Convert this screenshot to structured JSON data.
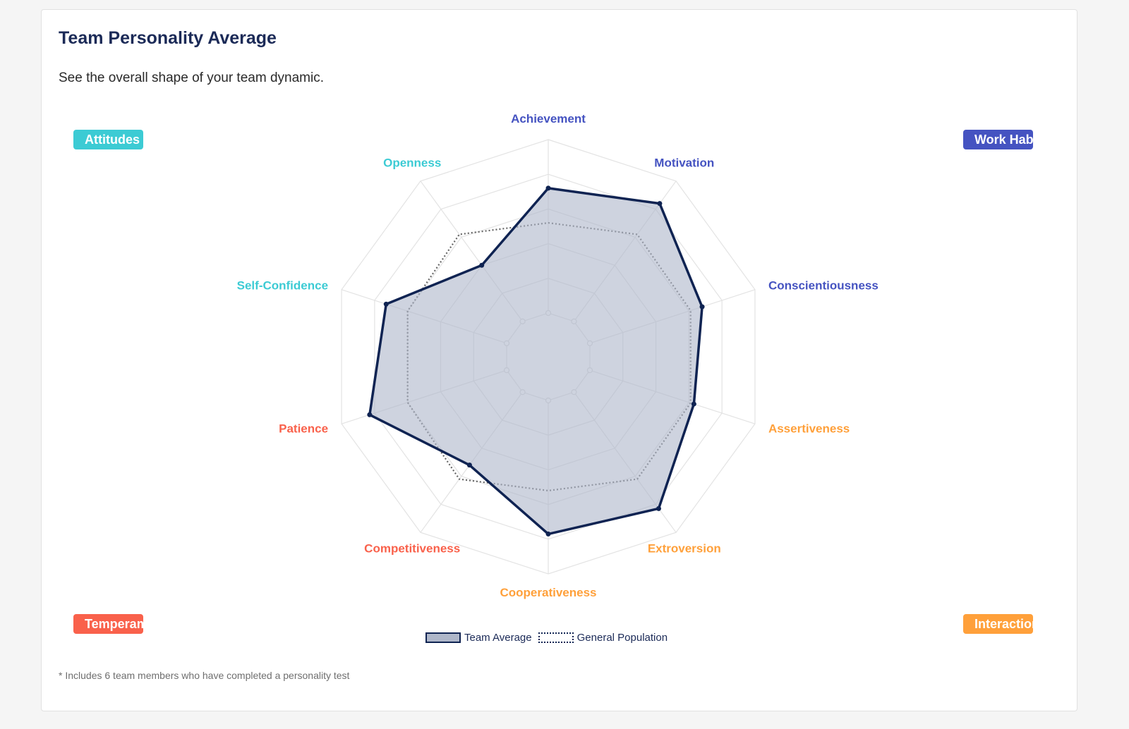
{
  "header": {
    "title": "Team Personality Average",
    "subtitle": "See the overall shape of your team dynamic."
  },
  "badges": {
    "attitudes": {
      "label": "Attitudes",
      "color": "#3ccbd4"
    },
    "work_habits": {
      "label": "Work Habits",
      "color": "#4553c1"
    },
    "temperament": {
      "label": "Temperament",
      "color": "#f9614b"
    },
    "interaction_style": {
      "label": "Interaction Style",
      "color": "#ffa03a"
    }
  },
  "legend": {
    "team_label": "Team Average",
    "population_label": "General Population"
  },
  "footnote": "* Includes 6 team members who have completed a personality test",
  "chart_data": {
    "type": "radar",
    "title": "",
    "rmax": 100,
    "rings": 5,
    "grid": true,
    "axes": [
      {
        "label": "Achievement",
        "color": "#4553c1"
      },
      {
        "label": "Motivation",
        "color": "#4553c1"
      },
      {
        "label": "Conscientiousness",
        "color": "#4553c1"
      },
      {
        "label": "Assertiveness",
        "color": "#ffa03a"
      },
      {
        "label": "Extroversion",
        "color": "#ffa03a"
      },
      {
        "label": "Cooperativeness",
        "color": "#ffa03a"
      },
      {
        "label": "Competitiveness",
        "color": "#f9614b"
      },
      {
        "label": "Patience",
        "color": "#f9614b"
      },
      {
        "label": "Self-Confidence",
        "color": "#3ccbd4"
      },
      {
        "label": "Openness",
        "color": "#3ccbd4"
      }
    ],
    "series": [
      {
        "name": "Team Average",
        "values": [
          72,
          84,
          68,
          63,
          83,
          77,
          52,
          83,
          73,
          40
        ],
        "line_color": "#0f2352",
        "fill_color": "#aeb6c9",
        "fill_opacity": 0.6,
        "style": "solid"
      },
      {
        "name": "General Population",
        "values": [
          52,
          62,
          61,
          61,
          62,
          52,
          62,
          60,
          60,
          62
        ],
        "line_color": "#666666",
        "style": "dotted"
      }
    ]
  }
}
